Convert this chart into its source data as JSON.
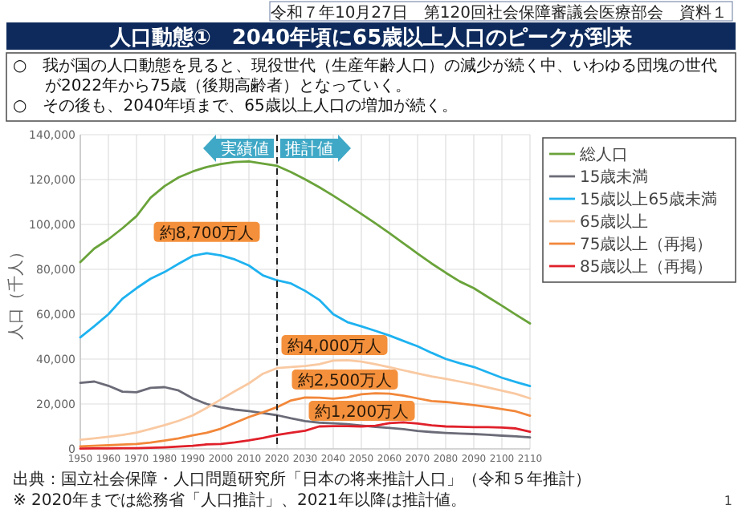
{
  "chart_data": {
    "type": "line",
    "title": "人口動態①　2040年頃に65歳以上人口のピークが到来",
    "ylabel": "人口（千人）",
    "x": [
      1950,
      1955,
      1960,
      1965,
      1970,
      1975,
      1980,
      1985,
      1990,
      1995,
      2000,
      2005,
      2010,
      2015,
      2020,
      2025,
      2030,
      2035,
      2040,
      2045,
      2050,
      2055,
      2060,
      2065,
      2070,
      2075,
      2080,
      2085,
      2090,
      2095,
      2100,
      2105,
      2110
    ],
    "xlim": [
      1950,
      2110
    ],
    "xticks": [
      1950,
      1960,
      1970,
      1980,
      1990,
      2000,
      2010,
      2020,
      2030,
      2040,
      2050,
      2060,
      2070,
      2080,
      2090,
      2100,
      2110
    ],
    "ylim": [
      0,
      140000
    ],
    "yticks": [
      0,
      {
        "value": 20000,
        "label": "20,000"
      },
      {
        "value": 40000,
        "label": "40,000"
      },
      {
        "value": 60000,
        "label": "60,000"
      },
      {
        "value": 80000,
        "label": "80,000"
      },
      {
        "value": 100000,
        "label": "100,000"
      },
      {
        "value": 120000,
        "label": "120,000"
      },
      {
        "value": 140000,
        "label": "140,000"
      }
    ],
    "grid": true,
    "legend": "right",
    "line_style": "solid",
    "series": [
      {
        "name": "総人口",
        "color": "#6aa33a",
        "values": [
          83200,
          89300,
          93400,
          98300,
          103700,
          111900,
          117100,
          121000,
          123600,
          125600,
          126900,
          127800,
          128100,
          127100,
          126100,
          123300,
          120100,
          116600,
          112800,
          108800,
          104700,
          100500,
          96100,
          91600,
          87000,
          82600,
          78500,
          74600,
          71600,
          67700,
          63800,
          59800,
          55900
        ]
      },
      {
        "name": "15歳未満",
        "color": "#6b6b78",
        "values": [
          29400,
          30000,
          28100,
          25500,
          25200,
          27200,
          27500,
          26000,
          22500,
          20000,
          18500,
          17500,
          16800,
          15900,
          15000,
          13600,
          12400,
          11700,
          11400,
          11000,
          10400,
          9800,
          9300,
          8800,
          8000,
          7500,
          7100,
          6800,
          6600,
          6300,
          5900,
          5600,
          5100
        ]
      },
      {
        "name": "15歳以上65歳未満",
        "color": "#1eb2f0",
        "values": [
          49700,
          54700,
          60000,
          66900,
          71600,
          75800,
          78800,
          82500,
          86000,
          87200,
          86200,
          84400,
          81700,
          77300,
          75100,
          73700,
          70400,
          66400,
          60000,
          56500,
          54600,
          52600,
          50500,
          48100,
          45700,
          42800,
          40100,
          38200,
          36500,
          34100,
          31700,
          29800,
          28000
        ]
      },
      {
        "name": "65歳以上",
        "color": "#f9c9a2",
        "values": [
          4100,
          4700,
          5400,
          6200,
          7300,
          8900,
          10600,
          12500,
          14900,
          18300,
          22000,
          25700,
          29200,
          33500,
          36000,
          36500,
          36900,
          37700,
          39300,
          39500,
          38900,
          37700,
          36400,
          35000,
          33600,
          32300,
          31200,
          30000,
          28800,
          27400,
          25900,
          24500,
          22500
        ]
      },
      {
        "name": "75歳以上（再掲）",
        "color": "#f2873a",
        "values": [
          1100,
          1400,
          1600,
          1900,
          2200,
          2800,
          3700,
          4700,
          6000,
          7200,
          9000,
          11600,
          14200,
          16300,
          18600,
          21600,
          22900,
          22800,
          22400,
          23000,
          24300,
          24800,
          24600,
          23700,
          22500,
          21300,
          20900,
          20200,
          19500,
          18700,
          17700,
          16700,
          14800
        ]
      },
      {
        "name": "85歳以上（再掲）",
        "color": "#e0202a",
        "values": [
          100,
          200,
          200,
          300,
          300,
          500,
          700,
          1000,
          1400,
          2000,
          2200,
          2900,
          3800,
          4900,
          6200,
          7200,
          8100,
          10000,
          10100,
          10100,
          10000,
          10300,
          11500,
          11800,
          11300,
          10500,
          10000,
          9900,
          9700,
          9700,
          9500,
          9100,
          7600
        ]
      }
    ],
    "ref_lines": [
      {
        "axis": "x",
        "value": 2020,
        "color": "#222222",
        "line_style": "dashed"
      }
    ],
    "annotations": [
      "令和７年10月27日　第120回社会保障審議会医療部会　資料１",
      "○　我が国の人口動態を見ると、現役世代（生産年齢人口）の減少が続く中、いわゆる団塊の世代が2022年から75歳（後期高齢者）となっていく。",
      "○　その後も、2040年頃まで、65歳以上人口の増加が続く。",
      "実績値",
      "推計値",
      {
        "text": "約8,700万人",
        "x": 1995,
        "y": 87200
      },
      {
        "text": "約4,000万人",
        "x": 2045,
        "y": 39500
      },
      {
        "text": "約2,500万人",
        "x": 2055,
        "y": 24800
      },
      {
        "text": "約1,200万人",
        "x": 2065,
        "y": 11800
      },
      "出典：国立社会保障・人口問題研究所「日本の将来推計人口」（令和５年推計）",
      "※ 2020年までは総務省「人口推計」、2021年以降は推計値。",
      "1"
    ]
  }
}
